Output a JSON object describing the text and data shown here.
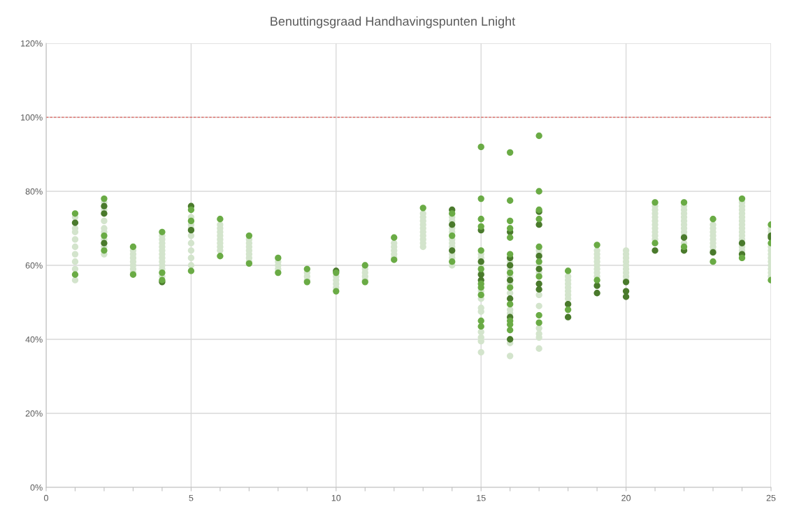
{
  "chart_data": {
    "type": "scatter",
    "title": "Benuttingsgraad Handhavingspunten Lnight",
    "xlim": [
      0,
      25
    ],
    "xticks": [
      0,
      {
        "value": 1,
        "label": null
      },
      {
        "value": 2,
        "label": null
      },
      {
        "value": 3,
        "label": null
      },
      {
        "value": 4,
        "label": null
      },
      5,
      {
        "value": 6,
        "label": null
      },
      {
        "value": 7,
        "label": null
      },
      {
        "value": 8,
        "label": null
      },
      {
        "value": 9,
        "label": null
      },
      10,
      {
        "value": 11,
        "label": null
      },
      {
        "value": 12,
        "label": null
      },
      {
        "value": 13,
        "label": null
      },
      {
        "value": 14,
        "label": null
      },
      15,
      {
        "value": 16,
        "label": null
      },
      {
        "value": 17,
        "label": null
      },
      {
        "value": 18,
        "label": null
      },
      {
        "value": 19,
        "label": null
      },
      20,
      {
        "value": 21,
        "label": null
      },
      {
        "value": 22,
        "label": null
      },
      {
        "value": 23,
        "label": null
      },
      {
        "value": 24,
        "label": null
      },
      25
    ],
    "ylim": [
      0,
      120
    ],
    "yticks": [
      {
        "value": 0,
        "label": "0%"
      },
      {
        "value": 20,
        "label": "20%"
      },
      {
        "value": 40,
        "label": "40%"
      },
      {
        "value": 60,
        "label": "60%"
      },
      {
        "value": 80,
        "label": "80%"
      },
      {
        "value": 100,
        "label": "100%"
      },
      {
        "value": 120,
        "label": "120%"
      }
    ],
    "grid": true,
    "marker": "circle",
    "ref_lines": [
      {
        "axis": "y",
        "value": 100,
        "color": "#e0403a",
        "line_style": "dashed"
      }
    ],
    "series": [
      {
        "color": "#6aab45",
        "x": [
          1,
          1,
          2,
          2,
          2,
          3,
          3,
          4,
          4,
          4,
          5,
          5,
          5,
          6,
          6,
          7,
          7,
          8,
          8,
          9,
          9,
          10,
          10,
          11,
          11,
          12,
          12,
          13,
          14,
          14,
          14,
          15,
          15,
          15,
          15,
          15,
          15,
          15,
          15,
          15,
          15,
          15,
          16,
          16,
          16,
          16,
          16,
          16,
          16,
          16,
          16,
          16,
          16,
          16,
          17,
          17,
          17,
          17,
          17,
          17,
          17,
          17,
          17,
          18,
          18,
          19,
          19,
          21,
          21,
          22,
          22,
          23,
          23,
          24,
          24,
          25,
          25,
          25
        ],
        "values": [
          74,
          57.5,
          78,
          64,
          68,
          65,
          57.5,
          69,
          56,
          58,
          75,
          72,
          58.5,
          72.5,
          62.5,
          68,
          60.5,
          62,
          58,
          59,
          55.5,
          53,
          58,
          60,
          55.5,
          67.5,
          61.5,
          75.5,
          74,
          61,
          68,
          92,
          78,
          72.5,
          70.5,
          64,
          59,
          55,
          54,
          52,
          45,
          43.5,
          90.5,
          77.5,
          72,
          70,
          67.5,
          63,
          58,
          54,
          49.5,
          45,
          44,
          42.5,
          95,
          80,
          75,
          72.5,
          65,
          61,
          57,
          46.5,
          44.5,
          58.5,
          48,
          65.5,
          56,
          77,
          66,
          77,
          65,
          72.5,
          61,
          78,
          62,
          71,
          56,
          66
        ]
      },
      {
        "color": "#4a7a2c",
        "x": [
          1,
          2,
          2,
          2,
          4,
          5,
          5,
          10,
          14,
          14,
          14,
          15,
          15,
          15,
          15,
          16,
          16,
          16,
          16,
          16,
          16,
          16,
          17,
          17,
          17,
          17,
          17,
          17,
          18,
          18,
          19,
          19,
          20,
          20,
          20,
          21,
          22,
          22,
          23,
          24,
          24,
          25,
          25
        ],
        "values": [
          71.5,
          76,
          74,
          66,
          55.5,
          76,
          69.5,
          58.5,
          75,
          71,
          64,
          69.5,
          61,
          57.5,
          56,
          69,
          62,
          60,
          56,
          51,
          46,
          40,
          74.5,
          71,
          62.5,
          59,
          55,
          53.5,
          49.5,
          46,
          54.5,
          52.5,
          55.5,
          53,
          51.5,
          64,
          64,
          67.5,
          63.5,
          66,
          63,
          68,
          67.5
        ]
      },
      {
        "color": "#d3e4cc",
        "x": [
          1,
          1,
          1,
          1,
          1,
          1,
          1,
          1,
          1,
          2,
          2,
          2,
          2,
          2,
          2,
          2,
          2,
          3,
          3,
          3,
          3,
          3,
          3,
          3,
          4,
          4,
          4,
          4,
          4,
          4,
          4,
          4,
          4,
          4,
          4,
          5,
          5,
          5,
          5,
          5,
          5,
          5,
          5,
          6,
          6,
          6,
          6,
          6,
          6,
          6,
          6,
          7,
          7,
          7,
          7,
          7,
          7,
          7,
          8,
          8,
          8,
          9,
          9,
          9,
          10,
          10,
          10,
          10,
          11,
          11,
          11,
          11,
          12,
          12,
          12,
          12,
          12,
          13,
          13,
          13,
          13,
          13,
          13,
          13,
          13,
          13,
          13,
          14,
          14,
          14,
          14,
          14,
          14,
          14,
          14,
          14,
          14,
          15,
          15,
          15,
          15,
          15,
          15,
          15,
          15,
          15,
          15,
          15,
          15,
          16,
          16,
          16,
          16,
          16,
          16,
          16,
          16,
          16,
          17,
          17,
          17,
          17,
          17,
          17,
          17,
          17,
          17,
          17,
          18,
          18,
          18,
          18,
          18,
          18,
          18,
          19,
          19,
          19,
          19,
          19,
          19,
          19,
          19,
          20,
          20,
          20,
          20,
          20,
          20,
          20,
          20,
          20,
          21,
          21,
          21,
          21,
          21,
          21,
          21,
          21,
          21,
          21,
          22,
          22,
          22,
          22,
          22,
          22,
          22,
          22,
          22,
          22,
          23,
          23,
          23,
          23,
          23,
          23,
          23,
          23,
          24,
          24,
          24,
          24,
          24,
          24,
          24,
          24,
          24,
          24,
          24,
          24,
          24,
          25,
          25,
          25,
          25,
          25,
          25,
          25,
          25,
          25,
          25,
          25
        ],
        "values": [
          56,
          59,
          61,
          63,
          65,
          67,
          69,
          70,
          73,
          63,
          65,
          67,
          69,
          70,
          72,
          75,
          77,
          58,
          59,
          60,
          61,
          62,
          63,
          64,
          57,
          59,
          60,
          61,
          62,
          63,
          64,
          65,
          66,
          67,
          68,
          60,
          62,
          64,
          66,
          68,
          70,
          71,
          73,
          64,
          65,
          66,
          67,
          68,
          69,
          70,
          71,
          61,
          62,
          63,
          64,
          65,
          66,
          67,
          59,
          60,
          61,
          56,
          57,
          58,
          54,
          55,
          56,
          57,
          56,
          57,
          58,
          59,
          62,
          63,
          64,
          65,
          66,
          65,
          66,
          67,
          68,
          69,
          70,
          71,
          72,
          73,
          74,
          60,
          62,
          63,
          65,
          66,
          67,
          69,
          70,
          72,
          73,
          63,
          62,
          60,
          58,
          53,
          51,
          48.5,
          47.5,
          42,
          40.5,
          39.5,
          36.5,
          61,
          59,
          57,
          55,
          52.5,
          48,
          47,
          39,
          35.5,
          64,
          63,
          60,
          58,
          52,
          49,
          43,
          41.5,
          40.5,
          37.5,
          51,
          52,
          53,
          54,
          55,
          56,
          57,
          57,
          58,
          59,
          60,
          61,
          62,
          63,
          64,
          56,
          57,
          58,
          59,
          60,
          61,
          62,
          63,
          64,
          67,
          68,
          69,
          70,
          71,
          72,
          73,
          74,
          75,
          76,
          66,
          68,
          69,
          70,
          71,
          72,
          73,
          74,
          75,
          76,
          64,
          65,
          66,
          67,
          68,
          69,
          70,
          71,
          64,
          65,
          67,
          68,
          69,
          70,
          71,
          72,
          73,
          74,
          75,
          76,
          77,
          57,
          58,
          59,
          60,
          61,
          62,
          63,
          64,
          65,
          69,
          70
        ]
      }
    ]
  }
}
